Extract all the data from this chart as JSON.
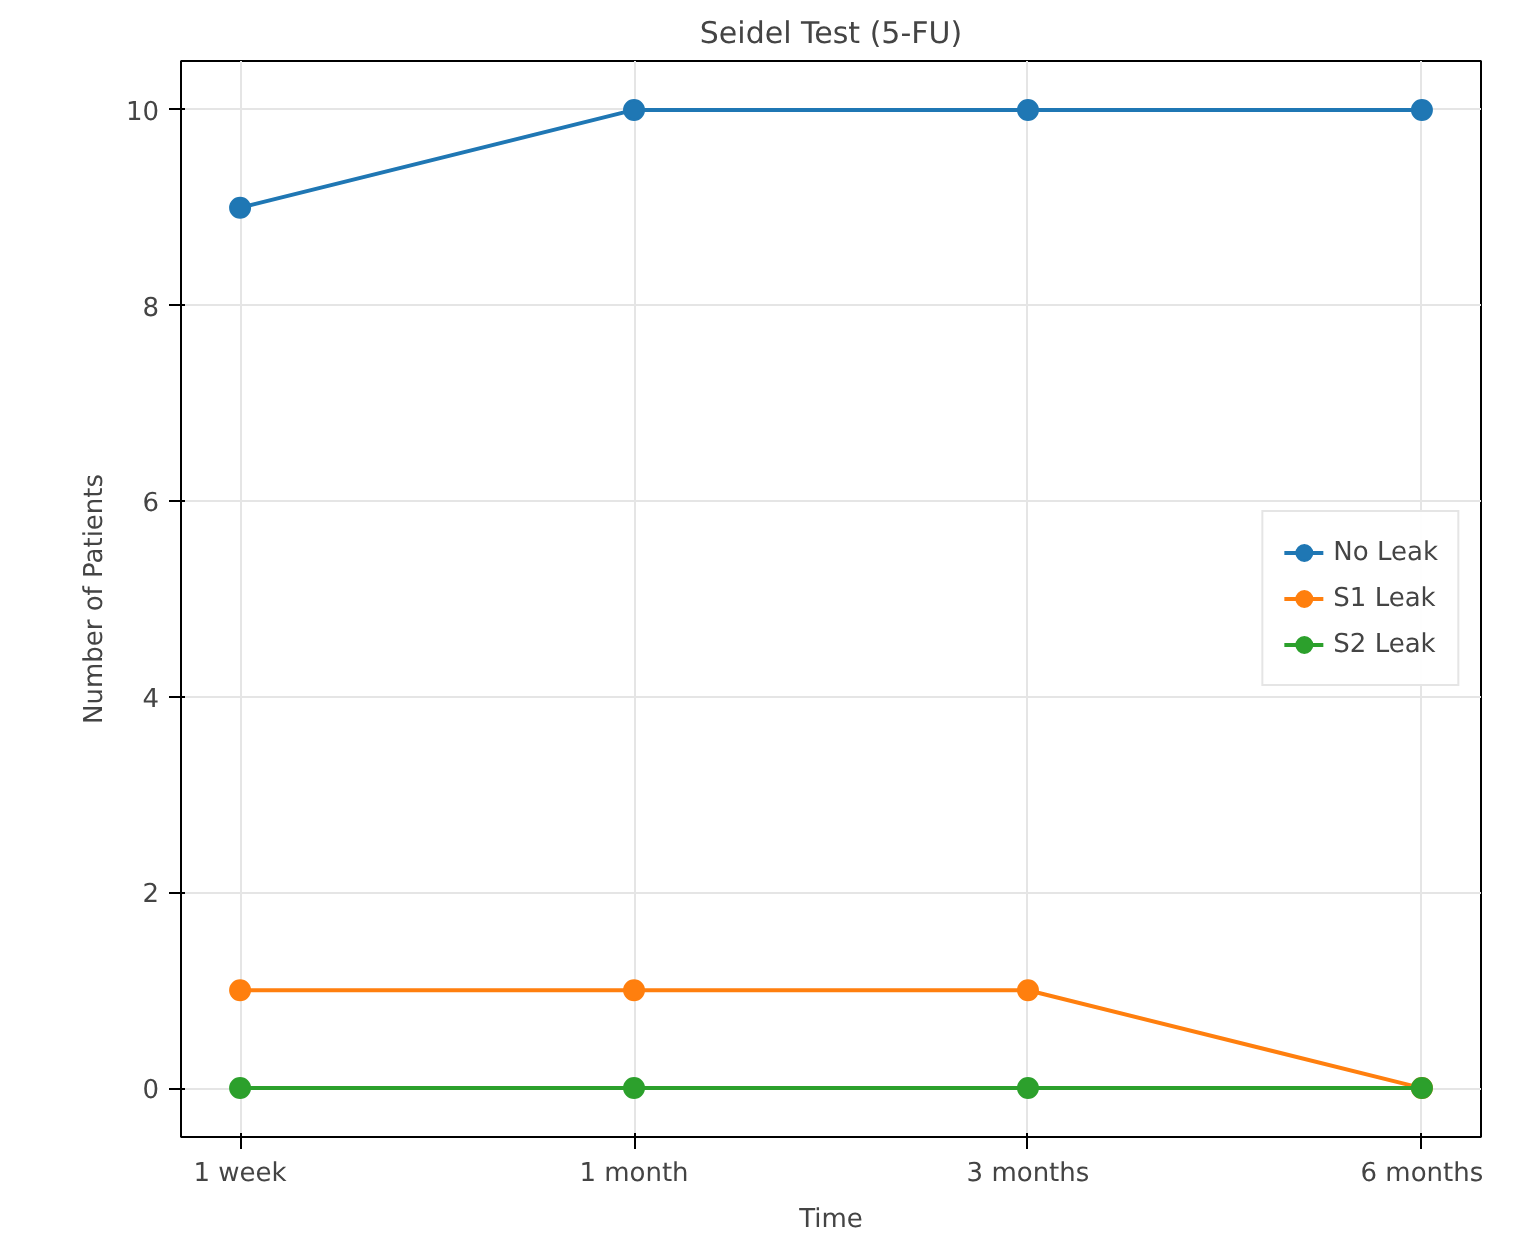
{
  "chart_data": {
    "type": "line",
    "title": "Seidel Test (5-FU)",
    "xlabel": "Time",
    "ylabel": "Number of Patients",
    "categories": [
      "1 week",
      "1 month",
      "3 months",
      "6 months"
    ],
    "series": [
      {
        "name": "No Leak",
        "color": "#1f77b4",
        "values": [
          9,
          10,
          10,
          10
        ]
      },
      {
        "name": "S1 Leak",
        "color": "#ff7f0e",
        "values": [
          1,
          1,
          1,
          0
        ]
      },
      {
        "name": "S2 Leak",
        "color": "#2ca02c",
        "values": [
          0,
          0,
          0,
          0
        ]
      }
    ],
    "ylim": [
      -0.5,
      10.5
    ],
    "yticks": [
      0,
      2,
      4,
      6,
      8,
      10
    ],
    "grid": true,
    "legend": "right",
    "marker": "circle",
    "line_style": "solid"
  }
}
